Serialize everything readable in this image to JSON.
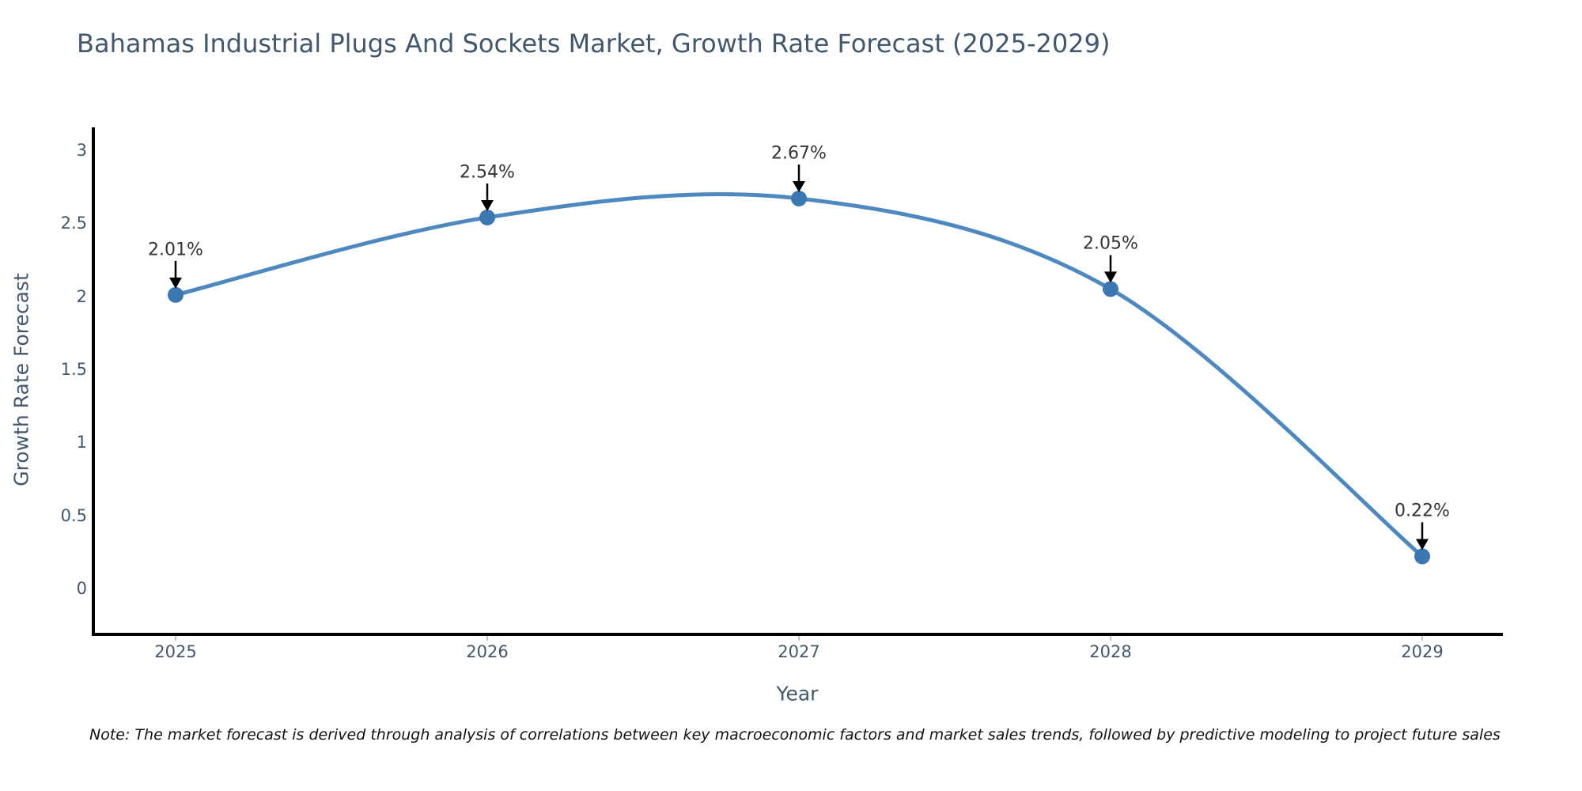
{
  "title": "Bahamas Industrial Plugs And Sockets Market, Growth Rate Forecast (2025-2029)",
  "note": "Note: The market forecast is derived through analysis of correlations between key macroeconomic factors and market sales trends, followed by predictive modeling to project future sales",
  "chart_data": {
    "type": "line",
    "title": "Bahamas Industrial Plugs And Sockets Market, Growth Rate Forecast (2025-2029)",
    "xlabel": "Year",
    "ylabel": "Growth Rate Forecast",
    "categories": [
      "2025",
      "2026",
      "2027",
      "2028",
      "2029"
    ],
    "values": [
      2.01,
      2.54,
      2.67,
      2.05,
      0.22
    ],
    "point_labels": [
      "2.01%",
      "2.54%",
      "2.67%",
      "2.05%",
      "0.22%"
    ],
    "yticks": [
      "0",
      "0.5",
      "1",
      "1.5",
      "2",
      "2.5",
      "3"
    ],
    "ytick_values": [
      0,
      0.5,
      1,
      1.5,
      2,
      2.5,
      3
    ],
    "ylim": [
      -0.3,
      3.16
    ],
    "grid": false,
    "legend": "none",
    "line_shape": "spline",
    "annotation_style": "arrow-down",
    "colors": {
      "line": "#4d89c0",
      "marker": "#3b78b3",
      "arrow": "#000000",
      "axis": "#000000",
      "text": "#42576e",
      "annotation": "#333333",
      "background": "#ffffff"
    }
  }
}
